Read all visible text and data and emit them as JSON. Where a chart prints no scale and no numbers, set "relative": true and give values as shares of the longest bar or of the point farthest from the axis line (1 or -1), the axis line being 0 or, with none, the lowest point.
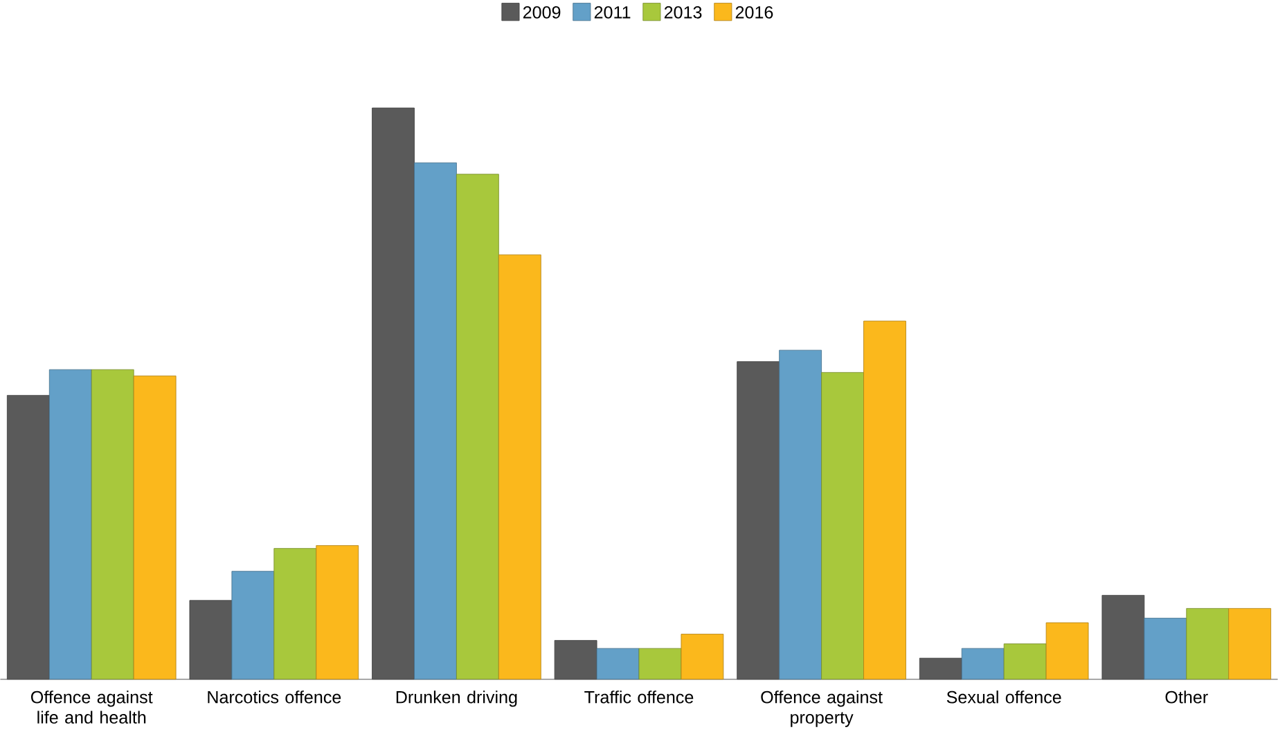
{
  "chart_data": {
    "type": "bar",
    "relative": true,
    "legend": "top",
    "categories": [
      "Offence against life and health",
      "Narcotics offence",
      "Drunken driving",
      "Traffic offence",
      "Offence against property",
      "Sexual offence",
      "Other"
    ],
    "series": [
      {
        "name": "2009",
        "color": "#5a5a5a",
        "values": [
          0.497,
          0.138,
          1,
          0.068,
          0.556,
          0.037,
          0.147
        ]
      },
      {
        "name": "2011",
        "color": "#63a0c8",
        "values": [
          0.542,
          0.189,
          0.904,
          0.054,
          0.576,
          0.054,
          0.107
        ]
      },
      {
        "name": "2013",
        "color": "#a8c83c",
        "values": [
          0.542,
          0.229,
          0.884,
          0.054,
          0.537,
          0.062,
          0.124
        ]
      },
      {
        "name": "2016",
        "color": "#fbb81c",
        "values": [
          0.531,
          0.234,
          0.743,
          0.079,
          0.627,
          0.099,
          0.124
        ]
      }
    ]
  }
}
